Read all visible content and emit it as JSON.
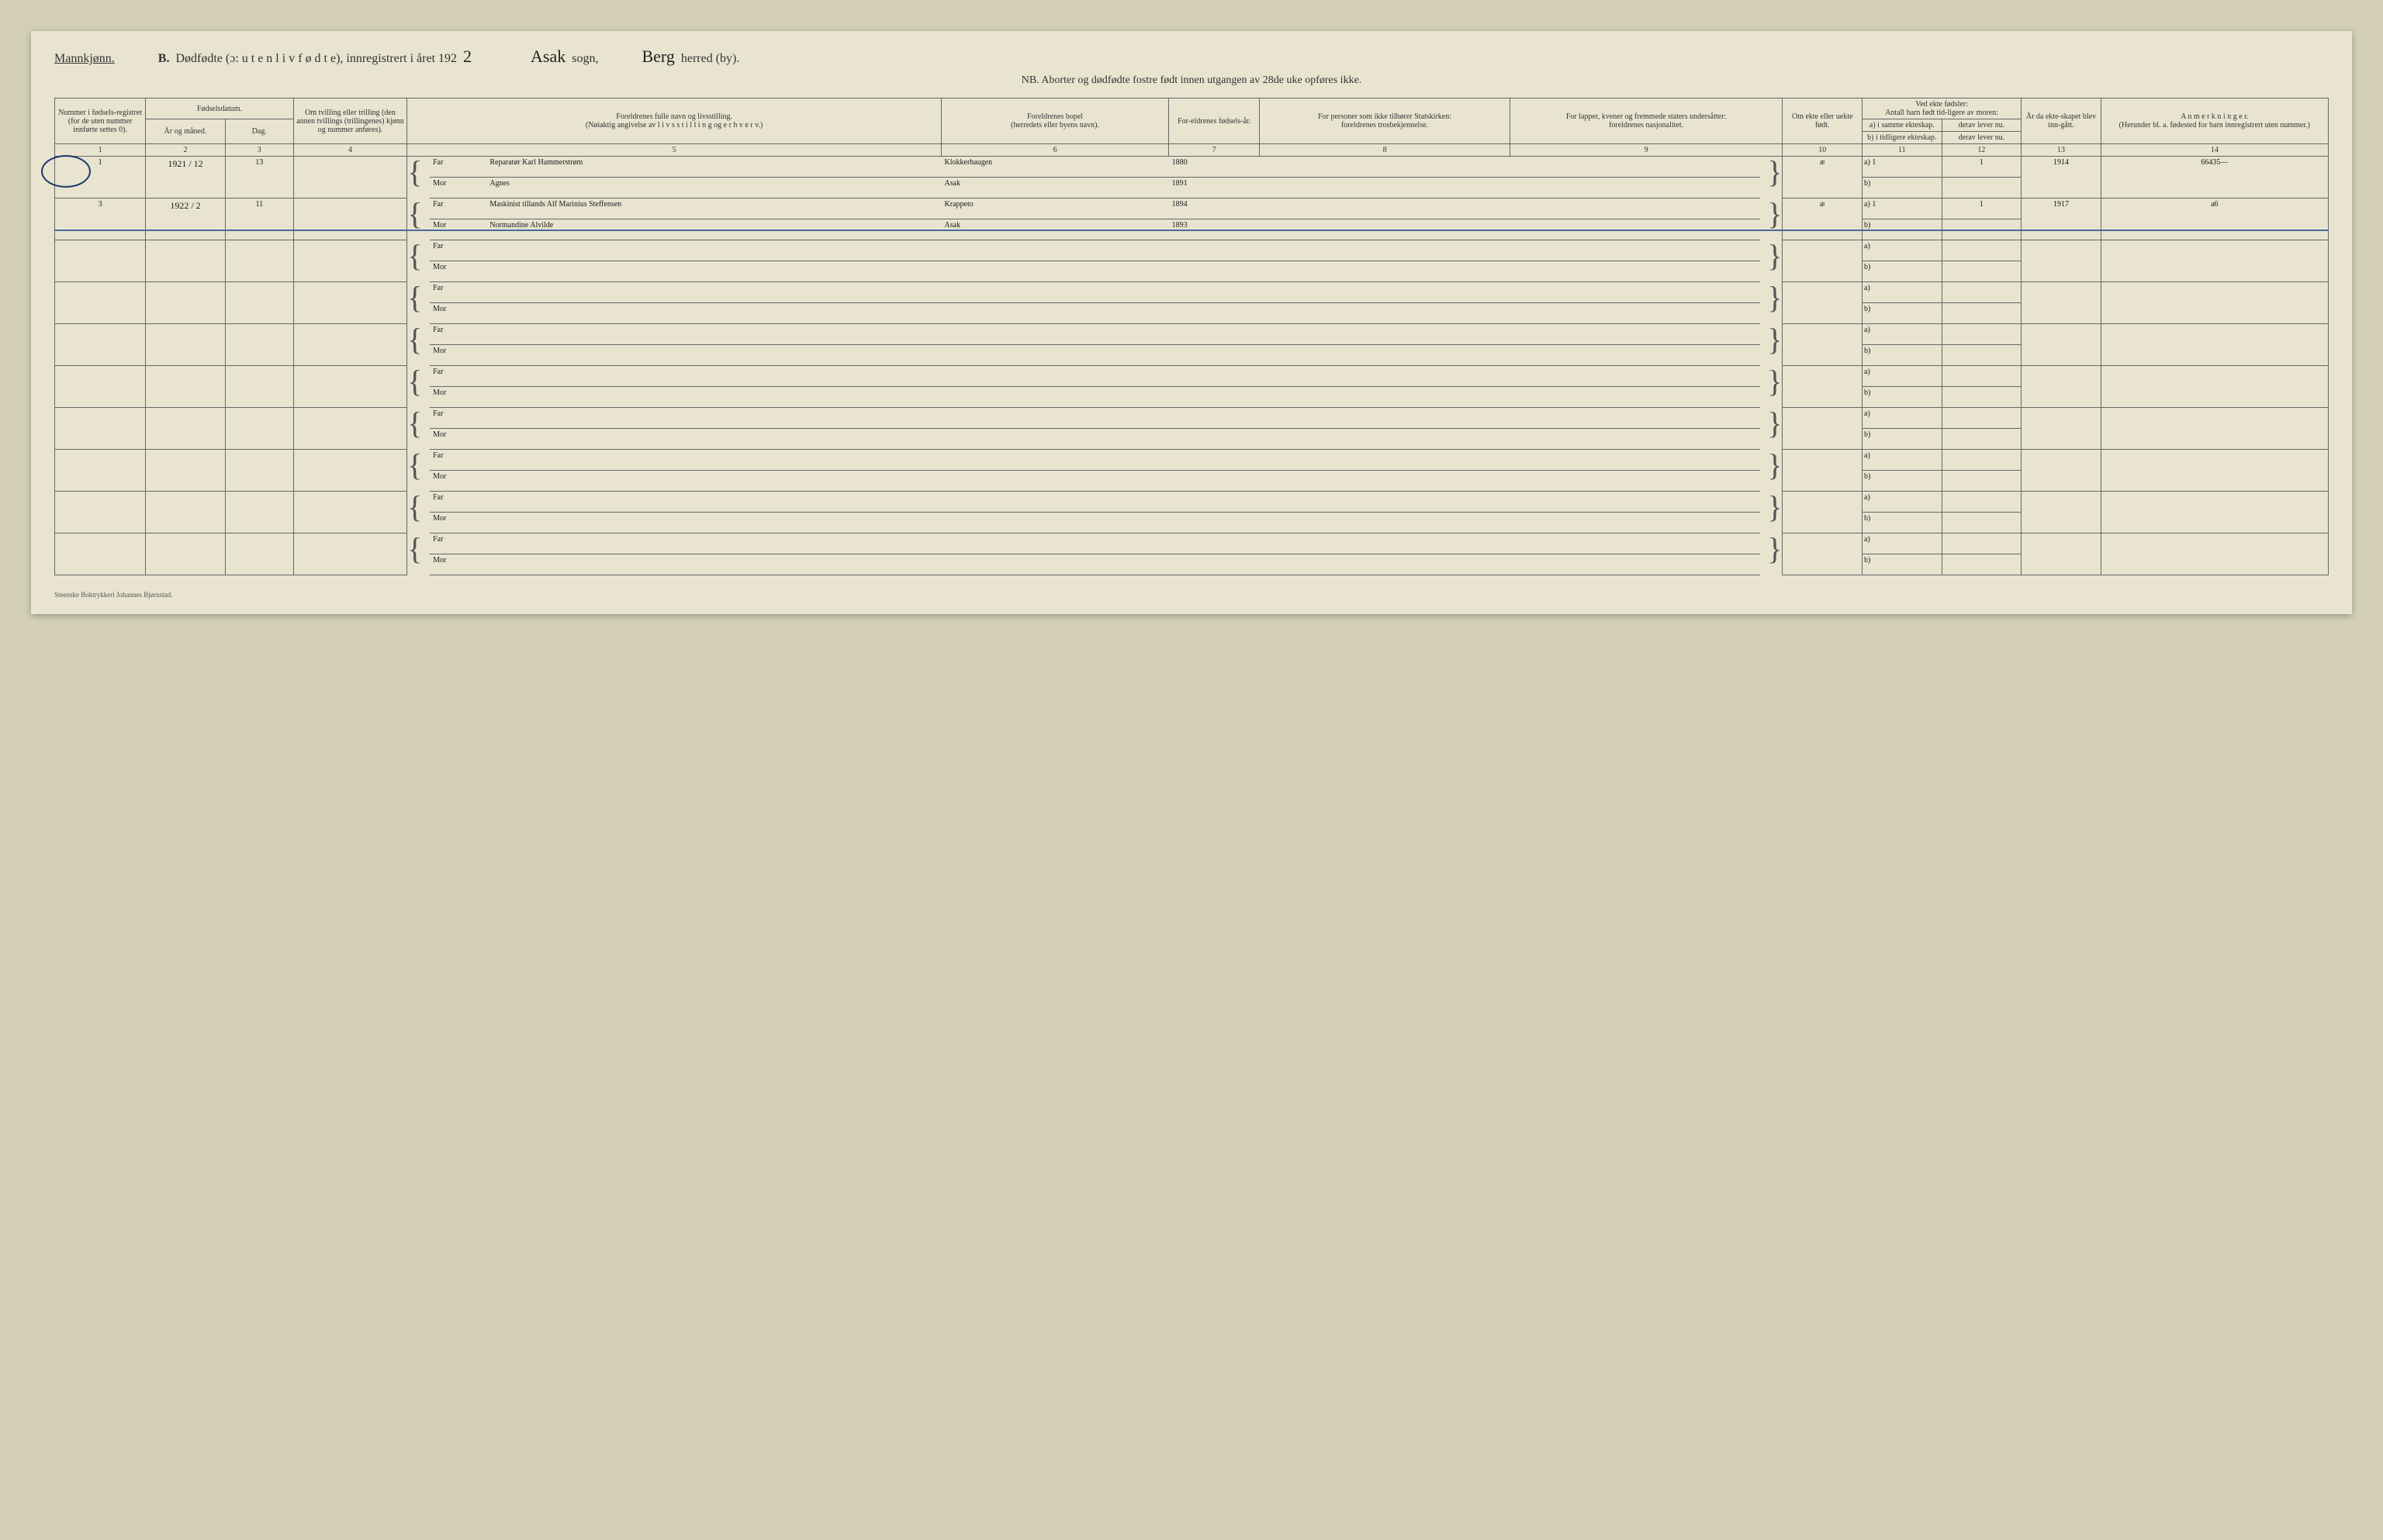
{
  "header": {
    "gender": "Mannkjønn.",
    "section": "B.",
    "title_main": "Dødfødte (ɔ: u t e n  l i v  f ø d t e), innregistrert i året 192",
    "year_suffix": "2",
    "sogn_value": "Asak",
    "sogn_label": "sogn,",
    "herred_value": "Berg",
    "herred_label": "herred (by).",
    "subtitle": "NB. Aborter og dødfødte fostre født innen utgangen av 28de uke opføres ikke."
  },
  "columns": {
    "c1": "Nummer i fødsels-registret (for de uten nummer innførte settes 0).",
    "c2_top": "Fødselsdatum.",
    "c2a": "År og måned.",
    "c2b": "Dag.",
    "c4": "Om tvilling eller trilling (den annen tvillings (trillingenes) kjønn og nummer anføres).",
    "c5": "Foreldrenes fulle navn og livsstilling.\n(Nøiaktig angivelse av l i v s s t i l l i n g og e r h v e r v.)",
    "c6": "Foreldrenes bopel\n(herredets eller byens navn).",
    "c7": "For-eldrenes fødsels-år.",
    "c8": "For personer som ikke tilhører Statskirken:\nforeldrenes trosbekjennelse.",
    "c9": "For lapper, kvener og fremmede staters undersåtter:\nforeldrenes nasjonalitet.",
    "c10": "Om ekte eller uekte født.",
    "c11_top": "Ved ekte fødsler:\nAntall barn født tid-ligere av moren:",
    "c11a": "a) i samme ekteskap.",
    "c11b": "b) i tidligere ekteskap.",
    "c12a": "derav lever nu.",
    "c12b": "derav lever nu.",
    "c13": "År da ekte-skapet blev inn-gått.",
    "c14": "A n m e r k n i n g e r.\n(Herunder bl. a. fødested for barn innregistrert uten nummer.)"
  },
  "colnums": [
    "1",
    "2",
    "3",
    "4",
    "5",
    "6",
    "7",
    "8",
    "9",
    "10",
    "11",
    "12",
    "13",
    "14"
  ],
  "labels": {
    "far": "Far",
    "mor": "Mor",
    "a": "a)",
    "b": "b)"
  },
  "entries": [
    {
      "num": "1",
      "year_month": "1921 / 12",
      "day": "13",
      "far_name": "Reparatør Karl Hammerstrøm",
      "mor_name": "Agnes",
      "far_place": "Klokkerhaugen",
      "mor_place": "Asak",
      "far_year": "1880",
      "mor_year": "1891",
      "ekte": "æ",
      "a_same": "1",
      "a_live": "1",
      "marriage_year": "1914",
      "note": "66435—"
    },
    {
      "num": "3",
      "year_month": "1922 / 2",
      "day": "11",
      "far_name": "Maskinist tillands Alf Marinius Steffensen",
      "mor_name": "Normandine Alvilde",
      "far_place": "Krappeto",
      "mor_place": "Asak",
      "far_year": "1894",
      "mor_year": "1893",
      "ekte": "æ",
      "a_same": "1",
      "a_live": "1",
      "marriage_year": "1917",
      "note": "a6"
    }
  ],
  "printer": "Steenske Boktrykkeri Johannes Bjørnstad.",
  "style": {
    "page_bg": "#e8e4d0",
    "border": "#666",
    "cursive_color": "#1a1a1a",
    "strike_color": "#4a6a9a"
  }
}
